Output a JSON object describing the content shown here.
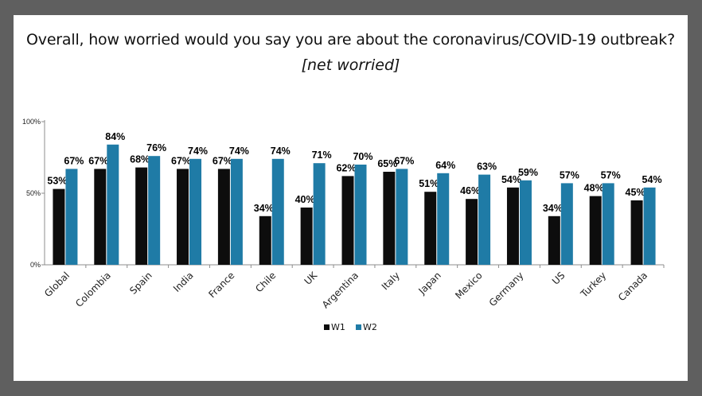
{
  "chart_data": {
    "type": "bar",
    "title": "Overall, how worried would you say you are about the coronavirus/COVID-19 outbreak?",
    "subtitle": "[net worried]",
    "categories": [
      "Global",
      "Colombia",
      "Spain",
      "India",
      "France",
      "Chile",
      "UK",
      "Argentina",
      "Italy",
      "Japan",
      "Mexico",
      "Germany",
      "US",
      "Turkey",
      "Canada"
    ],
    "series": [
      {
        "name": "W1",
        "color": "#0d0d0d",
        "values": [
          53,
          67,
          68,
          67,
          67,
          34,
          40,
          62,
          65,
          51,
          46,
          54,
          34,
          48,
          45
        ]
      },
      {
        "name": "W2",
        "color": "#1f7ba6",
        "values": [
          67,
          84,
          76,
          74,
          74,
          74,
          71,
          70,
          67,
          64,
          63,
          59,
          57,
          57,
          54
        ]
      }
    ],
    "yticks": [
      "0%",
      "50%",
      "100%"
    ],
    "ylim": [
      0,
      100
    ],
    "value_suffix": "%",
    "legend_position": "bottom-center",
    "grid": false
  }
}
